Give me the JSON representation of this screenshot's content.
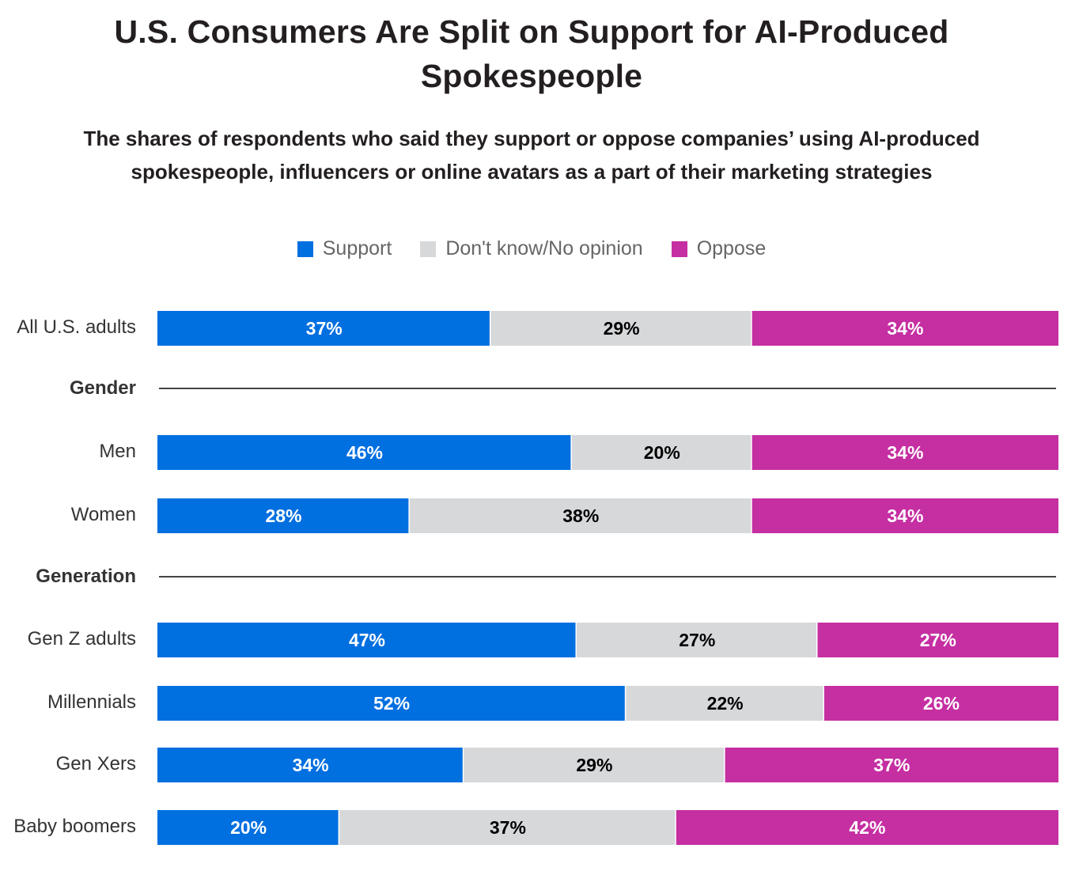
{
  "chart_data": {
    "type": "bar",
    "orientation": "horizontal",
    "stacked": true,
    "title": "U.S. Consumers Are Split on Support for AI-Produced Spokespeople",
    "subtitle": "The shares of respondents who said they support or oppose companies’ using AI-produced spokespeople, influencers or online avatars as a part of their marketing strategies",
    "xlabel": "",
    "ylabel": "",
    "xlim": [
      0,
      100
    ],
    "grid": false,
    "legend_position": "top-center",
    "series": [
      {
        "name": "Support",
        "color": "#006fe0",
        "label_color": "#ffffff"
      },
      {
        "name": "Don't know/No opinion",
        "color": "#d7d8da",
        "label_color": "#000000"
      },
      {
        "name": "Oppose",
        "color": "#c52fa2",
        "label_color": "#ffffff"
      }
    ],
    "rows": [
      {
        "kind": "bar",
        "category": "All U.S. adults",
        "values": [
          37,
          29,
          34
        ]
      },
      {
        "kind": "group",
        "label": "Gender"
      },
      {
        "kind": "bar",
        "category": "Men",
        "values": [
          46,
          20,
          34
        ]
      },
      {
        "kind": "bar",
        "category": "Women",
        "values": [
          28,
          38,
          34
        ]
      },
      {
        "kind": "group",
        "label": "Generation"
      },
      {
        "kind": "bar",
        "category": "Gen Z adults",
        "values": [
          47,
          27,
          27
        ]
      },
      {
        "kind": "bar",
        "category": "Millennials",
        "values": [
          52,
          22,
          26
        ]
      },
      {
        "kind": "bar",
        "category": "Gen Xers",
        "values": [
          34,
          29,
          37
        ]
      },
      {
        "kind": "bar",
        "category": "Baby boomers",
        "values": [
          20,
          37,
          42
        ]
      }
    ],
    "value_suffix": "%"
  }
}
